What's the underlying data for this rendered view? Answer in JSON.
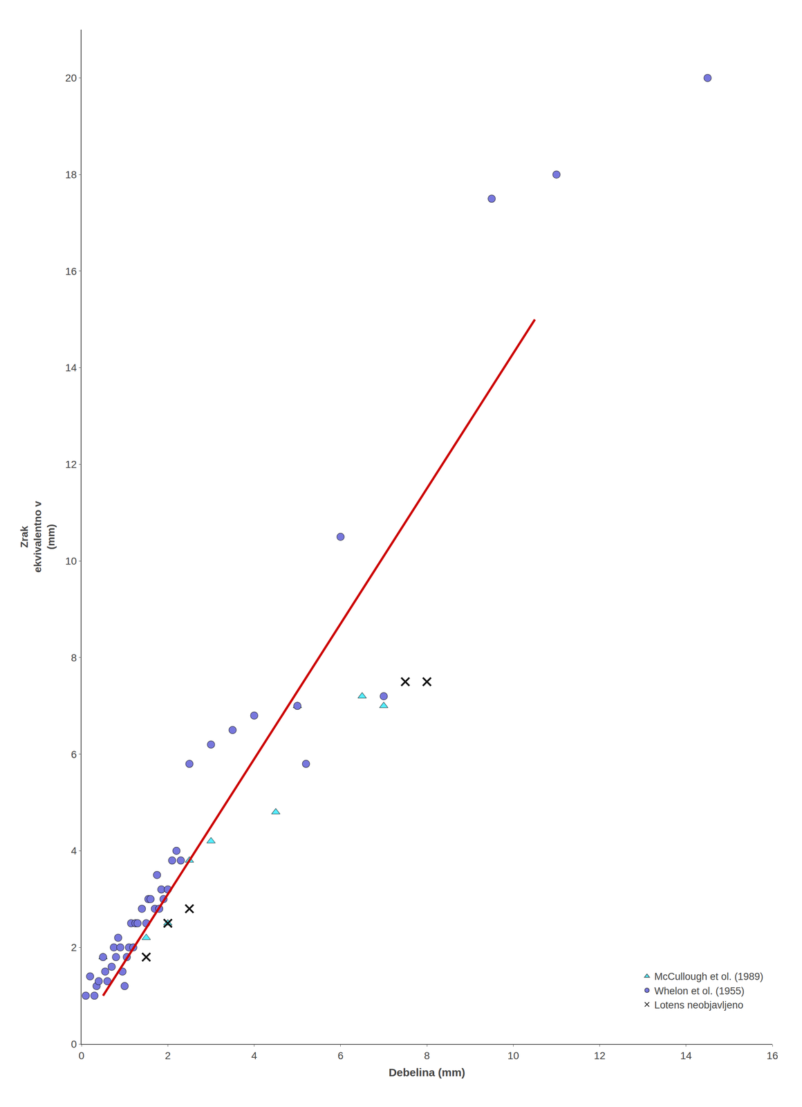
{
  "chart_data": {
    "type": "scatter",
    "xlabel": "Debelina (mm)",
    "ylabel": "Zrak\nekvivalentno v\n(mm)",
    "xlim": [
      0,
      16
    ],
    "ylim": [
      0,
      21
    ],
    "xticks": [
      0,
      2,
      4,
      6,
      8,
      10,
      12,
      14,
      16
    ],
    "yticks": [
      0,
      2,
      4,
      6,
      8,
      10,
      12,
      14,
      16,
      18,
      20
    ],
    "grid": false,
    "legend": "lower right",
    "series": [
      {
        "name": "McCullough et ol. (1989)",
        "type": "scatter",
        "marker": "triangle",
        "color": "#55eeff",
        "x": [
          0.5,
          1.5,
          2.0,
          2.5,
          3.0,
          4.5,
          5.0,
          6.5,
          7.0
        ],
        "values": [
          1.8,
          2.2,
          2.5,
          3.8,
          4.2,
          4.8,
          7.0,
          7.2,
          7.0
        ]
      },
      {
        "name": "Whelon et ol. (1955)",
        "type": "scatter",
        "marker": "circle",
        "color": "#7777dd",
        "x": [
          0.1,
          0.2,
          0.3,
          0.35,
          0.4,
          0.5,
          0.55,
          0.6,
          0.7,
          0.75,
          0.8,
          0.85,
          0.9,
          0.95,
          1.0,
          1.05,
          1.1,
          1.15,
          1.2,
          1.25,
          1.3,
          1.4,
          1.5,
          1.55,
          1.6,
          1.7,
          1.75,
          1.8,
          1.85,
          1.9,
          2.0,
          2.1,
          2.2,
          2.3,
          2.5,
          3.0,
          3.5,
          4.0,
          5.0,
          5.2,
          6.0,
          7.0,
          9.5,
          11.0,
          14.5
        ],
        "values": [
          1.0,
          1.4,
          1.0,
          1.2,
          1.3,
          1.8,
          1.5,
          1.3,
          1.6,
          2.0,
          1.8,
          2.2,
          2.0,
          1.5,
          1.2,
          1.8,
          2.0,
          2.5,
          2.0,
          2.5,
          2.5,
          2.8,
          2.5,
          3.0,
          3.0,
          2.8,
          3.5,
          2.8,
          3.2,
          3.0,
          3.2,
          3.8,
          4.0,
          3.8,
          5.8,
          6.2,
          6.5,
          6.8,
          7.0,
          5.8,
          10.5,
          7.2,
          17.5,
          18.0,
          20.0
        ]
      },
      {
        "name": "Lotens neobjavljeno",
        "type": "scatter",
        "marker": "x",
        "color": "#111111",
        "x": [
          1.5,
          2.0,
          2.5,
          7.5,
          8.0
        ],
        "values": [
          1.8,
          2.5,
          2.8,
          7.5,
          7.5
        ]
      },
      {
        "type": "line",
        "line_style": "solid",
        "color": "#cc0000",
        "x": [
          0.5,
          10.5
        ],
        "values": [
          1.0,
          15.0
        ]
      }
    ]
  }
}
